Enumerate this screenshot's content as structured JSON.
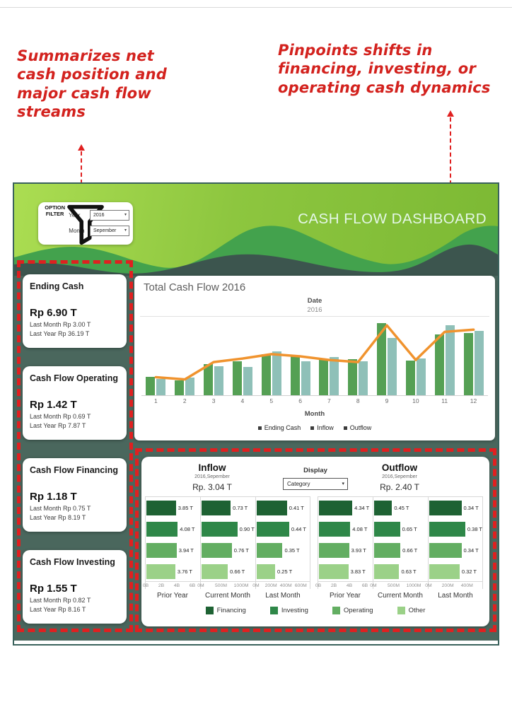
{
  "annotations": {
    "left": "Summarizes net cash position and major cash flow streams",
    "right": "Pinpoints shifts in financing, investing, or operating cash dynamics"
  },
  "header": {
    "title": "CASH FLOW DASHBOARD",
    "filter": {
      "label_line1": "OPTION",
      "label_line2": "FILTER",
      "year_label": "Year",
      "year_value": "2016",
      "month_label": "Month",
      "month_value": "Sepember"
    }
  },
  "kpi_cards": [
    {
      "title": "Ending Cash",
      "value": "Rp 6.90 T",
      "last_month": "Last Month Rp 3.00 T",
      "last_year": "Last Year  Rp 36.19 T"
    },
    {
      "title": "Cash Flow Operating",
      "value": "Rp 1.42 T",
      "last_month": "Last Month Rp 0.69 T",
      "last_year": "Last Year Rp 7.87 T"
    },
    {
      "title": "Cash Flow Financing",
      "value": "Rp 1.18 T",
      "last_month": "Last Month Rp 0.75 T",
      "last_year": "Last Year Rp 8.19 T"
    },
    {
      "title": "Cash Flow Investing",
      "value": "Rp 1.55 T",
      "last_month": "Last Month Rp 0.82 T",
      "last_year": "Last Year Rp 8.16 T"
    }
  ],
  "flow_section": {
    "display_label": "Display",
    "display_value": "Category",
    "legend": [
      {
        "label": "Financing",
        "color": "#1e6233"
      },
      {
        "label": "Investing",
        "color": "#2e8748"
      },
      {
        "label": "Operating",
        "color": "#63ae62"
      },
      {
        "label": "Other",
        "color": "#9bd188"
      }
    ]
  },
  "colors": {
    "annotation_red": "#d3221e",
    "dashed_red": "#e02020",
    "header_green": "#8dc63f",
    "body_dark_green": "#4a675d",
    "inflow_bar": "#55a054",
    "outflow_bar": "#8fc0b8",
    "ending_cash_line": "#f0932e"
  },
  "chart_data": [
    {
      "id": "total-cash-flow",
      "type": "bar",
      "title": "Total Cash Flow 2016",
      "col_header": "Date",
      "col_value": "2016",
      "x": [
        1,
        2,
        3,
        4,
        5,
        6,
        7,
        8,
        9,
        10,
        11,
        12
      ],
      "xlabel": "Month",
      "ylim": [
        0,
        110
      ],
      "grid": false,
      "legend_position": "bottom",
      "legend": [
        "Ending Cash",
        "Inflow",
        "Outflow"
      ],
      "series": [
        {
          "name": "Inflow",
          "kind": "bar",
          "color": "#55a054",
          "values": [
            26,
            21,
            44,
            48,
            57,
            56,
            50,
            51,
            101,
            49,
            85,
            87
          ]
        },
        {
          "name": "Outflow",
          "kind": "bar",
          "color": "#8fc0b8",
          "values": [
            23,
            25,
            41,
            40,
            61,
            48,
            54,
            48,
            80,
            52,
            98,
            90
          ]
        },
        {
          "name": "Ending Cash",
          "kind": "line",
          "color": "#f0932e",
          "values": [
            26,
            23,
            47,
            52,
            58,
            55,
            50,
            47,
            98,
            50,
            89,
            92
          ]
        }
      ]
    },
    {
      "id": "inflow",
      "type": "bar",
      "orientation": "horizontal",
      "title": "Inflow",
      "subtitle": "2016,Sepember",
      "total": "Rp. 3.04 T",
      "categories": [
        "Financing",
        "Investing",
        "Operating",
        "Other"
      ],
      "category_colors": [
        "#1e6233",
        "#2e8748",
        "#63ae62",
        "#9bd188"
      ],
      "columns": [
        {
          "label": "Prior Year",
          "span": 7.0,
          "ticks": [
            {
              "t": "0B",
              "v": 0
            },
            {
              "t": "2B",
              "v": 2
            },
            {
              "t": "4B",
              "v": 4
            },
            {
              "t": "6B",
              "v": 6
            }
          ],
          "values": [
            3.85,
            4.08,
            3.94,
            3.76
          ],
          "labels": [
            "3.85 T",
            "4.08 T",
            "3.94 T",
            "3.76 T"
          ]
        },
        {
          "label": "Current Month",
          "span": 1.35,
          "ticks": [
            {
              "t": "0M",
              "v": 0
            },
            {
              "t": "500M",
              "v": 0.5
            },
            {
              "t": "1000M",
              "v": 1.0
            }
          ],
          "values": [
            0.73,
            0.9,
            0.76,
            0.66
          ],
          "labels": [
            "0.73 T",
            "0.90 T",
            "0.76 T",
            "0.66 T"
          ]
        },
        {
          "label": "Last Month",
          "span": 0.72,
          "ticks": [
            {
              "t": "0M",
              "v": 0
            },
            {
              "t": "200M",
              "v": 0.2
            },
            {
              "t": "400M",
              "v": 0.4
            },
            {
              "t": "600M",
              "v": 0.6
            }
          ],
          "values": [
            0.41,
            0.44,
            0.35,
            0.25
          ],
          "labels": [
            "0.41 T",
            "0.44 T",
            "0.35 T",
            "0.25 T"
          ]
        }
      ]
    },
    {
      "id": "outflow",
      "type": "bar",
      "orientation": "horizontal",
      "title": "Outflow",
      "subtitle": "2016,Sepember",
      "total": "Rp. 2.40 T",
      "categories": [
        "Financing",
        "Investing",
        "Operating",
        "Other"
      ],
      "category_colors": [
        "#1e6233",
        "#2e8748",
        "#63ae62",
        "#9bd188"
      ],
      "columns": [
        {
          "label": "Prior Year",
          "span": 7.0,
          "ticks": [
            {
              "t": "0B",
              "v": 0
            },
            {
              "t": "2B",
              "v": 2
            },
            {
              "t": "4B",
              "v": 4
            },
            {
              "t": "6B",
              "v": 6
            }
          ],
          "values": [
            4.34,
            4.08,
            3.93,
            3.83
          ],
          "labels": [
            "4.34 T",
            "4.08 T",
            "3.93 T",
            "3.83 T"
          ]
        },
        {
          "label": "Current Month",
          "span": 1.35,
          "ticks": [
            {
              "t": "0M",
              "v": 0
            },
            {
              "t": "500M",
              "v": 0.5
            },
            {
              "t": "1000M",
              "v": 1.0
            }
          ],
          "values": [
            0.45,
            0.65,
            0.66,
            0.63
          ],
          "labels": [
            "0.45 T",
            "0.65 T",
            "0.66 T",
            "0.63 T"
          ]
        },
        {
          "label": "Last Month",
          "span": 0.56,
          "ticks": [
            {
              "t": "0M",
              "v": 0
            },
            {
              "t": "200M",
              "v": 0.2
            },
            {
              "t": "400M",
              "v": 0.4
            }
          ],
          "values": [
            0.34,
            0.38,
            0.34,
            0.32
          ],
          "labels": [
            "0.34 T",
            "0.38 T",
            "0.34 T",
            "0.32 T"
          ]
        }
      ]
    }
  ]
}
